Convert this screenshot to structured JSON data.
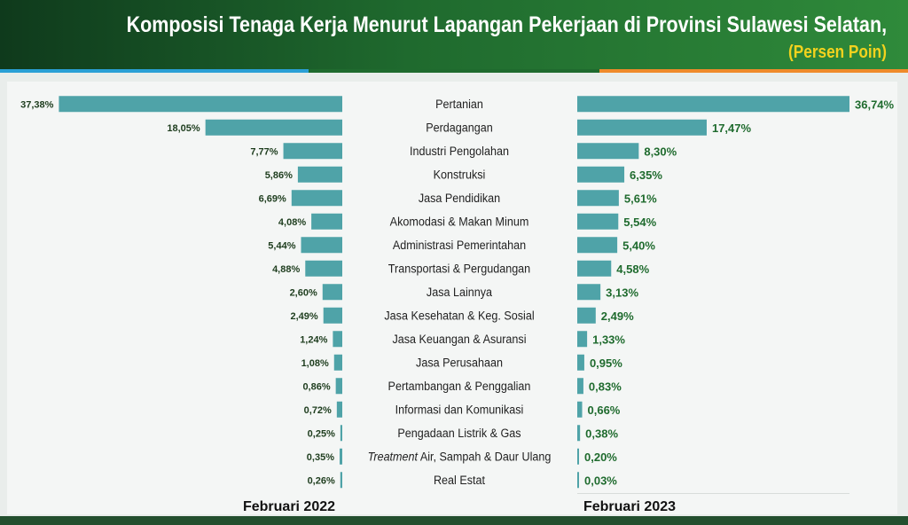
{
  "header": {
    "title": "Komposisi Tenaga Kerja Menurut Lapangan Pekerjaan di Provinsi Sulawesi Selatan,",
    "subtitle": "(Persen Poin)"
  },
  "colors": {
    "bar": "#4fa3a8",
    "label_left": "#1e3d1e",
    "label_right": "#1f6b2e",
    "category_text": "#222222"
  },
  "chart_data": {
    "type": "bar",
    "orientation": "horizontal-butterfly",
    "categories": [
      "Pertanian",
      "Perdagangan",
      "Industri Pengolahan",
      "Konstruksi",
      "Jasa Pendidikan",
      "Akomodasi & Makan Minum",
      "Administrasi Pemerintahan",
      "Transportasi & Pergudangan",
      "Jasa Lainnya",
      "Jasa Kesehatan & Keg. Sosial",
      "Jasa Keuangan & Asuransi",
      "Jasa Perusahaan",
      "Pertambangan & Penggalian",
      "Informasi dan Komunikasi",
      "Pengadaan Listrik & Gas",
      "Treatment Air, Sampah & Daur Ulang",
      "Real Estat"
    ],
    "series": [
      {
        "name": "Februari 2022",
        "values": [
          37.38,
          18.05,
          7.77,
          5.86,
          6.69,
          4.08,
          5.44,
          4.88,
          2.6,
          2.49,
          1.24,
          1.08,
          0.86,
          0.72,
          0.25,
          0.35,
          0.26
        ],
        "labels": [
          "37,38%",
          "18,05%",
          "7,77%",
          "5,86%",
          "6,69%",
          "4,08%",
          "5,44%",
          "4,88%",
          "2,60%",
          "2,49%",
          "1,24%",
          "1,08%",
          "0,86%",
          "0,72%",
          "0,25%",
          "0,35%",
          "0,26%"
        ]
      },
      {
        "name": "Februari 2023",
        "values": [
          36.74,
          17.47,
          8.3,
          6.35,
          5.61,
          5.54,
          5.4,
          4.58,
          3.13,
          2.49,
          1.33,
          0.95,
          0.83,
          0.66,
          0.38,
          0.2,
          0.03
        ],
        "labels": [
          "36,74%",
          "17,47%",
          "8,30%",
          "6,35%",
          "5,61%",
          "5,54%",
          "5,40%",
          "4,58%",
          "3,13%",
          "2,49%",
          "1,33%",
          "0,95%",
          "0,83%",
          "0,66%",
          "0,38%",
          "0,20%",
          "0,03%"
        ]
      }
    ],
    "italic_prefix": {
      "index": 15,
      "text": "Treatment"
    },
    "xlim": [
      0,
      40
    ],
    "grid": false,
    "legend": "bottom"
  }
}
